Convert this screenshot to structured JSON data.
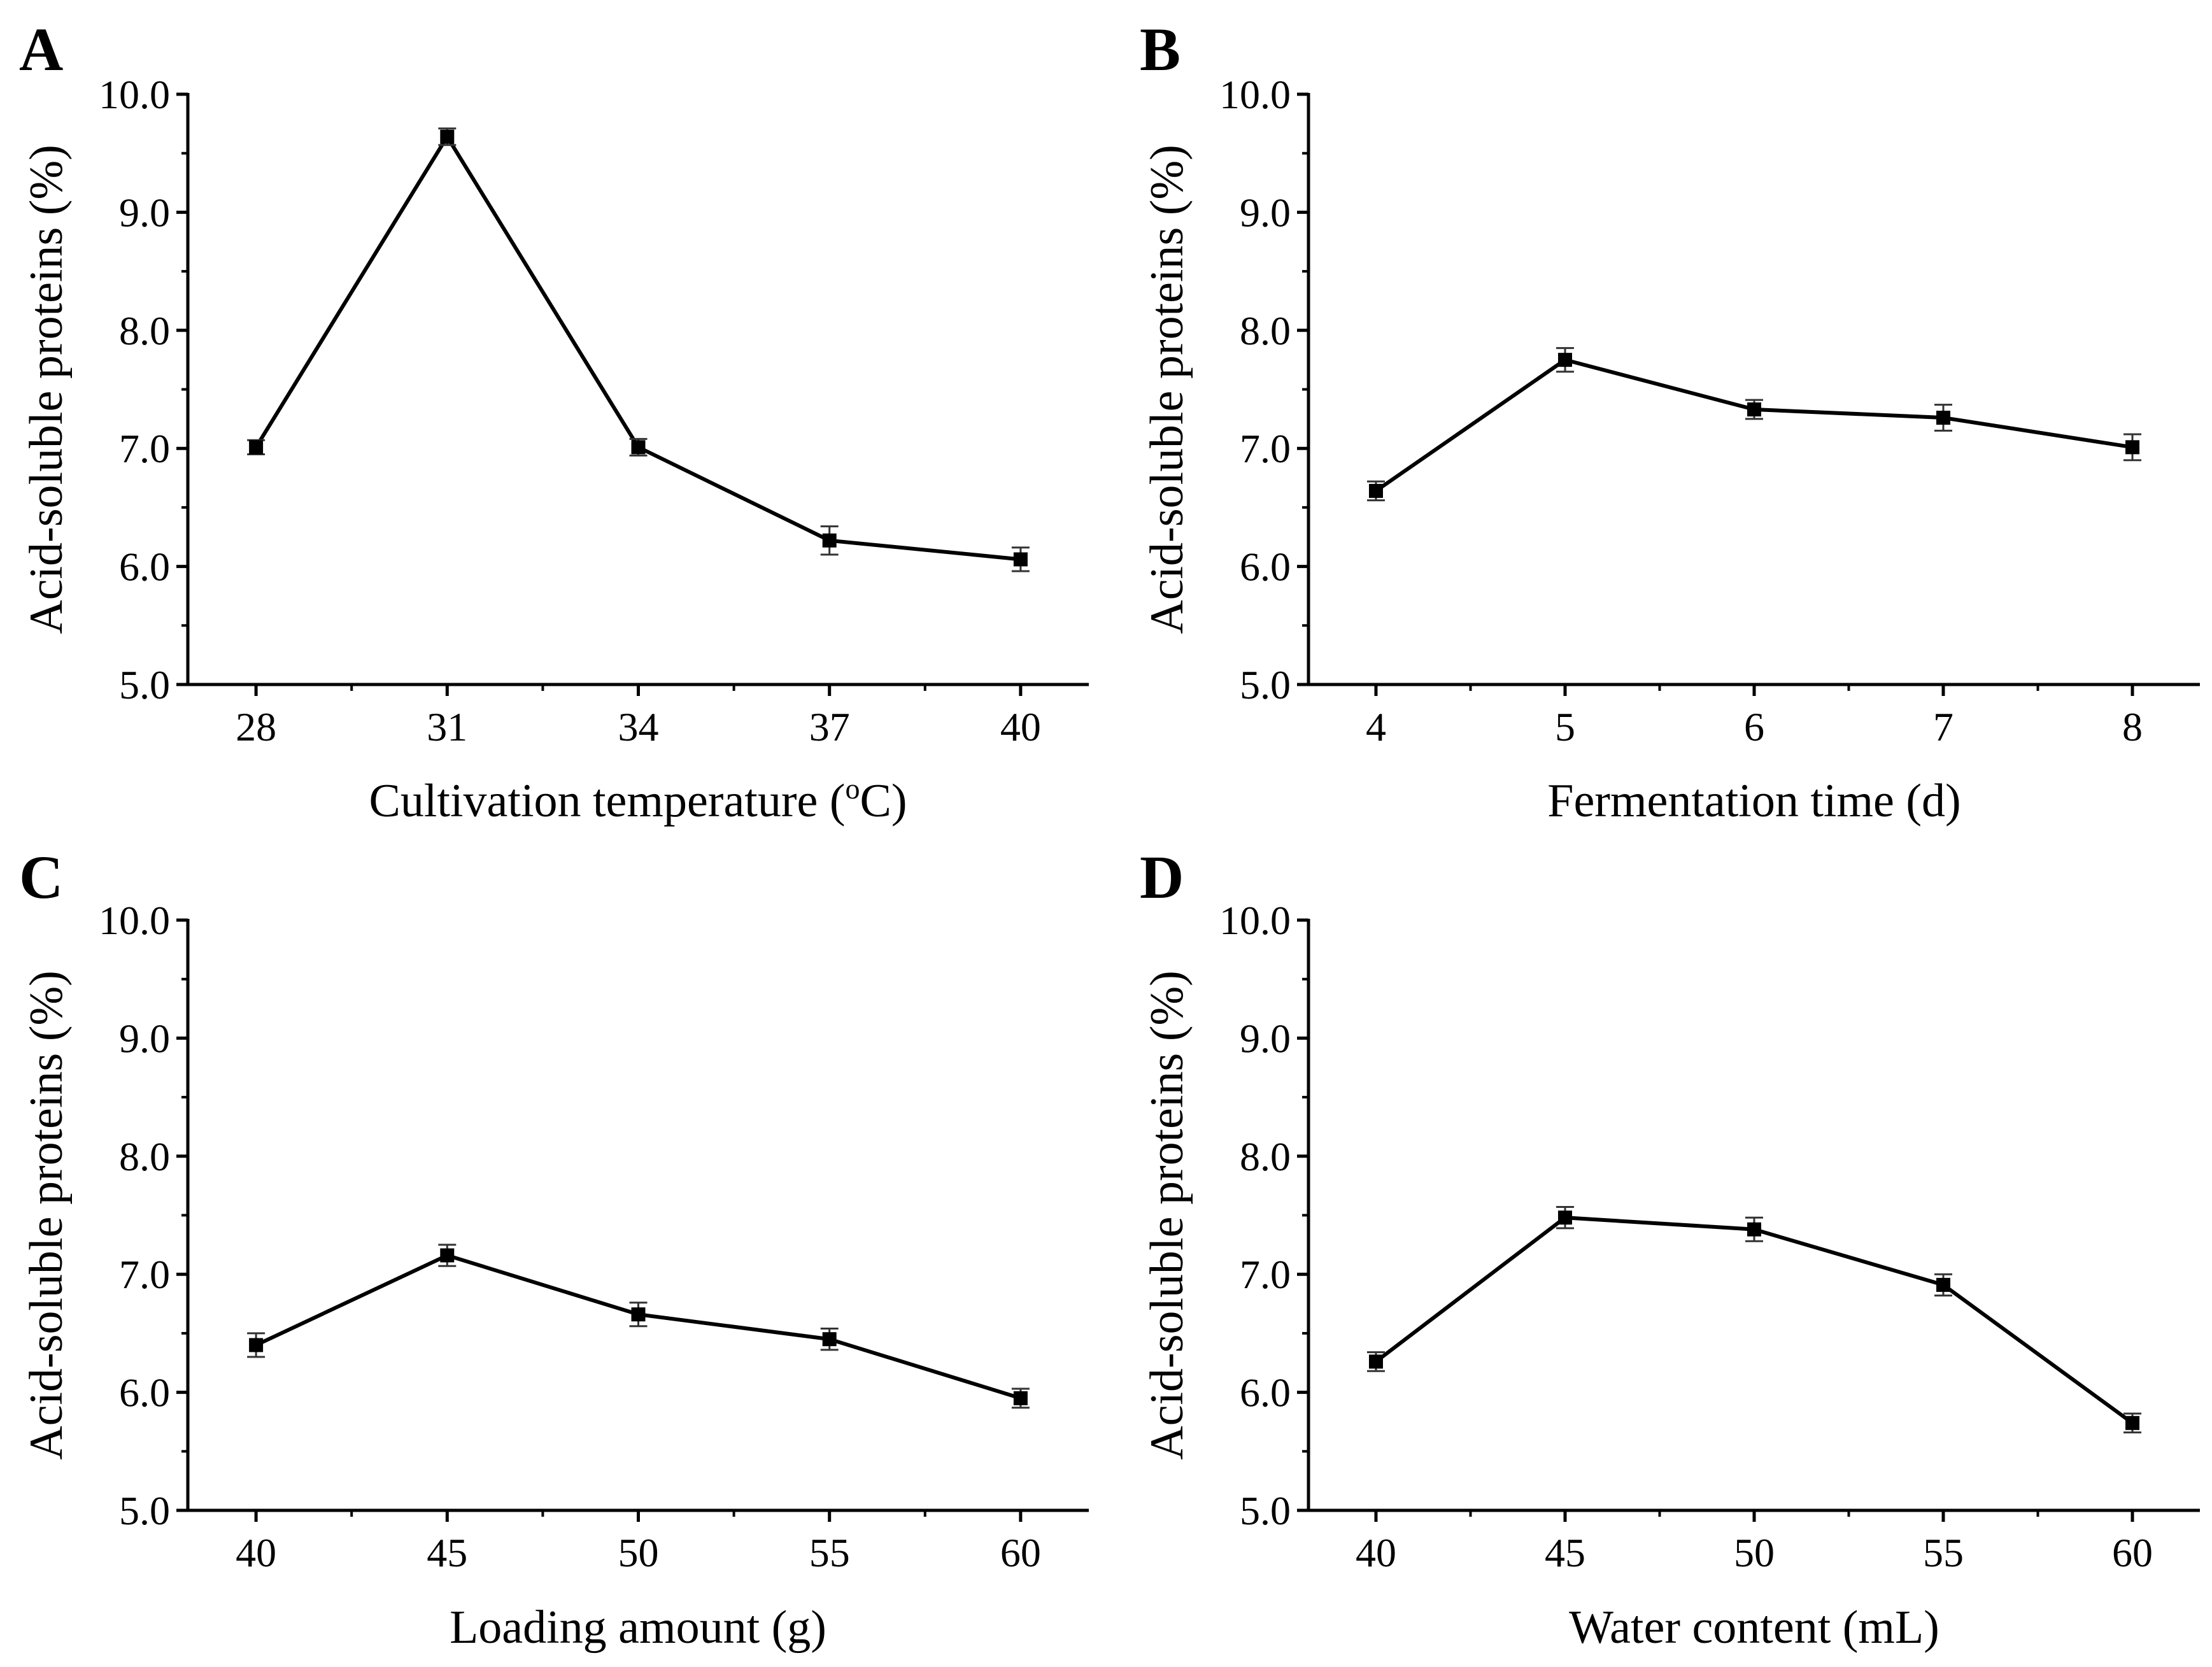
{
  "figure": {
    "background": "#ffffff",
    "line_color": "#000000",
    "marker_color": "#000000",
    "errorbar_color": "#333333"
  },
  "chart_data": [
    {
      "panel": "A",
      "type": "line",
      "title": "",
      "xlabel": "Cultivation temperature (oC)",
      "xlabel_parts": {
        "before": "Cultivation temperature (",
        "sup": "o",
        "after": "C)"
      },
      "ylabel": "Acid-soluble proteins (%)",
      "categories": [
        "28",
        "31",
        "34",
        "37",
        "40"
      ],
      "x": [
        28,
        31,
        34,
        37,
        40
      ],
      "values": [
        7.01,
        9.64,
        7.01,
        6.22,
        6.06
      ],
      "errors": [
        0.06,
        0.07,
        0.07,
        0.12,
        0.1
      ],
      "ylim": [
        5.0,
        10.0
      ],
      "yticks": [
        "5.0",
        "6.0",
        "7.0",
        "8.0",
        "9.0",
        "10.0"
      ],
      "grid": false,
      "legend": "none"
    },
    {
      "panel": "B",
      "type": "line",
      "title": "",
      "xlabel": "Fermentation time (d)",
      "ylabel": "Acid-soluble proteins (%)",
      "categories": [
        "4",
        "5",
        "6",
        "7",
        "8"
      ],
      "x": [
        4,
        5,
        6,
        7,
        8
      ],
      "values": [
        6.64,
        7.75,
        7.33,
        7.26,
        7.01
      ],
      "errors": [
        0.08,
        0.1,
        0.08,
        0.11,
        0.11
      ],
      "ylim": [
        5.0,
        10.0
      ],
      "yticks": [
        "5.0",
        "6.0",
        "7.0",
        "8.0",
        "9.0",
        "10.0"
      ],
      "grid": false,
      "legend": "none"
    },
    {
      "panel": "C",
      "type": "line",
      "title": "",
      "xlabel": "Loading amount (g)",
      "ylabel": "Acid-soluble proteins (%)",
      "categories": [
        "40",
        "45",
        "50",
        "55",
        "60"
      ],
      "x": [
        40,
        45,
        50,
        55,
        60
      ],
      "values": [
        6.4,
        7.16,
        6.66,
        6.45,
        5.95
      ],
      "errors": [
        0.1,
        0.09,
        0.1,
        0.09,
        0.08
      ],
      "ylim": [
        5.0,
        10.0
      ],
      "yticks": [
        "5.0",
        "6.0",
        "7.0",
        "8.0",
        "9.0",
        "10.0"
      ],
      "grid": false,
      "legend": "none"
    },
    {
      "panel": "D",
      "type": "line",
      "title": "",
      "xlabel": "Water content (mL)",
      "ylabel": "Acid-soluble proteins (%)",
      "categories": [
        "40",
        "45",
        "50",
        "55",
        "60"
      ],
      "x": [
        40,
        45,
        50,
        55,
        60
      ],
      "values": [
        6.26,
        7.48,
        7.38,
        6.91,
        5.74
      ],
      "errors": [
        0.08,
        0.09,
        0.1,
        0.09,
        0.08
      ],
      "ylim": [
        5.0,
        10.0
      ],
      "yticks": [
        "5.0",
        "6.0",
        "7.0",
        "8.0",
        "9.0",
        "10.0"
      ],
      "grid": false,
      "legend": "none"
    }
  ]
}
